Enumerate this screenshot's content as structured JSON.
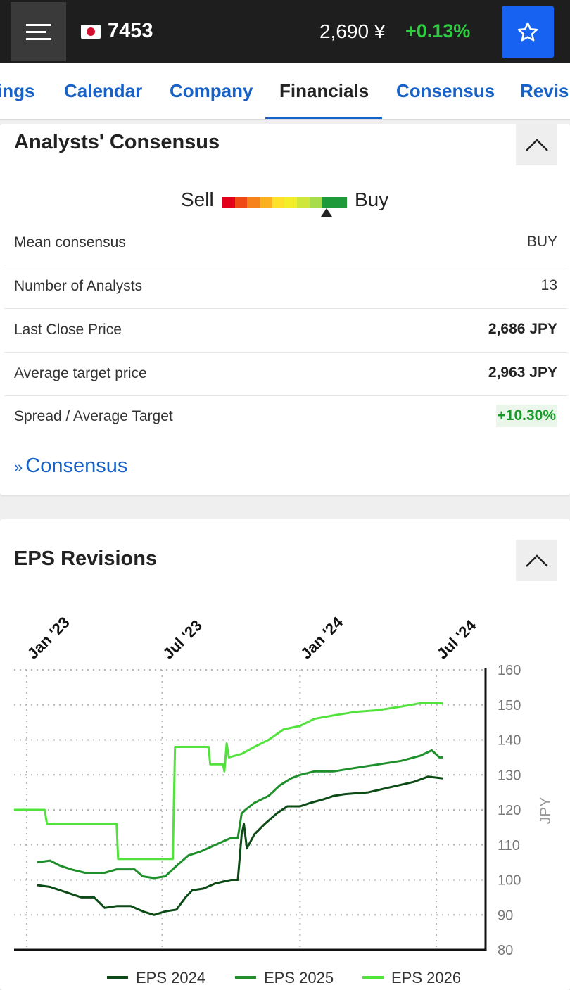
{
  "header": {
    "ticker": "7453",
    "price": "2,690 ¥",
    "change": "+0.13%",
    "menu_icon": "hamburger-icon",
    "flag_icon": "japan-flag-icon",
    "star_icon": "star-icon"
  },
  "tabs": [
    {
      "label": "ings"
    },
    {
      "label": "Calendar"
    },
    {
      "label": "Company"
    },
    {
      "label": "Financials"
    },
    {
      "label": "Consensus"
    },
    {
      "label": "Revisi"
    }
  ],
  "active_tab": "Financials",
  "consensus": {
    "title": "Analysts' Consensus",
    "sell_label": "Sell",
    "buy_label": "Buy",
    "rating_colors": [
      "#e4001b",
      "#ef4a16",
      "#f6821b",
      "#fbb11e",
      "#fde12a",
      "#f2ef2a",
      "#cfe63a",
      "#a7dc4a",
      "#6fcf4a",
      "#3cb94a"
    ],
    "rating_level": 9,
    "rows": [
      {
        "label": "Mean consensus",
        "value": "BUY"
      },
      {
        "label": "Number of Analysts",
        "value": "13"
      },
      {
        "label": "Last Close Price",
        "value": "2,686 JPY"
      },
      {
        "label": "Average target price",
        "value": "2,963 JPY"
      },
      {
        "label": "Spread / Average Target",
        "value": "+10.30%"
      }
    ],
    "link_prefix": "»",
    "link_label": "Consensus"
  },
  "eps": {
    "title": "EPS Revisions"
  },
  "chart_data": {
    "type": "line",
    "title": "",
    "ylabel": "JPY",
    "ylim": [
      80,
      160
    ],
    "yticks": [
      80,
      90,
      100,
      110,
      120,
      130,
      140,
      150,
      160
    ],
    "x_ticks": [
      "Jan '23",
      "Jul '23",
      "Jan '24",
      "Jul '24"
    ],
    "x_tick_dates": [
      "2023-01-01",
      "2023-07-01",
      "2024-01-01",
      "2024-07-01"
    ],
    "grid": true,
    "legend_position": "bottom",
    "series": [
      {
        "name": "EPS 2024",
        "color": "#0c4a16",
        "points": [
          [
            "2023-01-15",
            98.5
          ],
          [
            "2023-02-01",
            98
          ],
          [
            "2023-02-15",
            97
          ],
          [
            "2023-03-01",
            96
          ],
          [
            "2023-03-15",
            95
          ],
          [
            "2023-04-01",
            95
          ],
          [
            "2023-04-15",
            92
          ],
          [
            "2023-05-01",
            92.5
          ],
          [
            "2023-05-20",
            92.5
          ],
          [
            "2023-06-05",
            91
          ],
          [
            "2023-06-20",
            90
          ],
          [
            "2023-07-05",
            91
          ],
          [
            "2023-07-20",
            91.5
          ],
          [
            "2023-08-01",
            95
          ],
          [
            "2023-08-10",
            97
          ],
          [
            "2023-08-25",
            97.5
          ],
          [
            "2023-09-10",
            99
          ],
          [
            "2023-10-01",
            100
          ],
          [
            "2023-10-10",
            100
          ],
          [
            "2023-10-15",
            113
          ],
          [
            "2023-10-18",
            116
          ],
          [
            "2023-10-22",
            109
          ],
          [
            "2023-11-01",
            113
          ],
          [
            "2023-11-15",
            116
          ],
          [
            "2023-12-01",
            119
          ],
          [
            "2023-12-15",
            121
          ],
          [
            "2024-01-01",
            121
          ],
          [
            "2024-01-15",
            122
          ],
          [
            "2024-02-01",
            123
          ],
          [
            "2024-02-15",
            124
          ],
          [
            "2024-03-01",
            124.5
          ],
          [
            "2024-04-01",
            125
          ],
          [
            "2024-05-01",
            126.5
          ],
          [
            "2024-06-01",
            128
          ],
          [
            "2024-06-20",
            129.5
          ],
          [
            "2024-07-10",
            129
          ]
        ]
      },
      {
        "name": "EPS 2025",
        "color": "#1e8f2a",
        "points": [
          [
            "2023-01-15",
            105
          ],
          [
            "2023-02-01",
            105.5
          ],
          [
            "2023-02-15",
            104
          ],
          [
            "2023-03-01",
            103
          ],
          [
            "2023-03-20",
            102
          ],
          [
            "2023-04-15",
            102
          ],
          [
            "2023-05-01",
            103
          ],
          [
            "2023-05-25",
            103
          ],
          [
            "2023-06-05",
            101
          ],
          [
            "2023-06-20",
            100.5
          ],
          [
            "2023-07-05",
            101
          ],
          [
            "2023-07-20",
            104
          ],
          [
            "2023-08-05",
            107
          ],
          [
            "2023-08-20",
            108
          ],
          [
            "2023-09-10",
            110
          ],
          [
            "2023-10-01",
            112
          ],
          [
            "2023-10-10",
            112
          ],
          [
            "2023-10-15",
            119
          ],
          [
            "2023-10-20",
            120
          ],
          [
            "2023-11-01",
            122
          ],
          [
            "2023-11-20",
            124
          ],
          [
            "2023-12-05",
            127
          ],
          [
            "2023-12-20",
            129
          ],
          [
            "2024-01-01",
            130
          ],
          [
            "2024-01-20",
            131
          ],
          [
            "2024-02-15",
            131
          ],
          [
            "2024-03-15",
            132
          ],
          [
            "2024-04-15",
            133
          ],
          [
            "2024-05-15",
            134
          ],
          [
            "2024-06-10",
            135.5
          ],
          [
            "2024-06-25",
            137
          ],
          [
            "2024-07-05",
            135
          ],
          [
            "2024-07-10",
            135
          ]
        ]
      },
      {
        "name": "EPS 2026",
        "color": "#52e23c",
        "points": [
          [
            "2022-12-05",
            120
          ],
          [
            "2023-01-01",
            120
          ],
          [
            "2023-01-25",
            120
          ],
          [
            "2023-01-28",
            116
          ],
          [
            "2023-03-20",
            116
          ],
          [
            "2023-05-01",
            116
          ],
          [
            "2023-05-03",
            106
          ],
          [
            "2023-07-10",
            106
          ],
          [
            "2023-07-15",
            106
          ],
          [
            "2023-07-18",
            138
          ],
          [
            "2023-09-01",
            138
          ],
          [
            "2023-09-03",
            133
          ],
          [
            "2023-09-20",
            133
          ],
          [
            "2023-09-22",
            131
          ],
          [
            "2023-09-25",
            139
          ],
          [
            "2023-09-28",
            135
          ],
          [
            "2023-10-15",
            136
          ],
          [
            "2023-11-01",
            138
          ],
          [
            "2023-11-20",
            140
          ],
          [
            "2023-12-10",
            143
          ],
          [
            "2024-01-01",
            144
          ],
          [
            "2024-01-20",
            146
          ],
          [
            "2024-02-15",
            147
          ],
          [
            "2024-03-15",
            148
          ],
          [
            "2024-04-15",
            148.5
          ],
          [
            "2024-05-15",
            149.5
          ],
          [
            "2024-06-10",
            150.5
          ],
          [
            "2024-07-10",
            150.5
          ]
        ]
      }
    ]
  }
}
